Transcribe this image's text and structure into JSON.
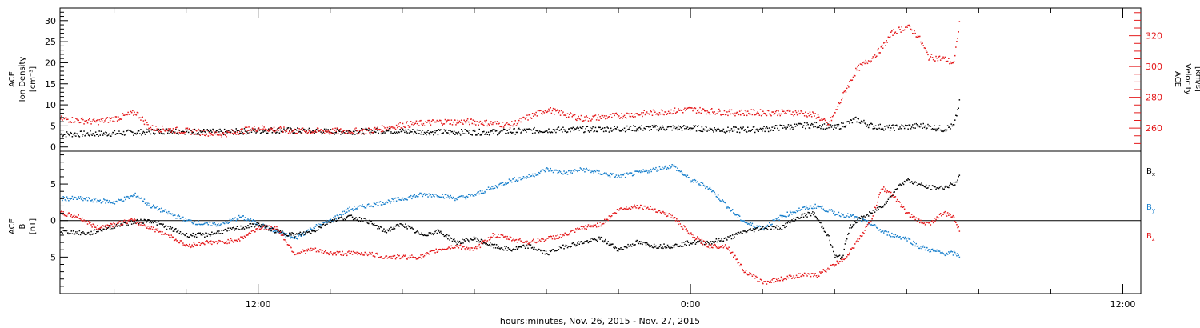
{
  "footer": {
    "xlabel": "hours:minutes, Nov. 26, 2015 - Nov. 27, 2015"
  },
  "x_ticks": [
    "12:00",
    "0:00",
    "12:00"
  ],
  "chart_data": [
    {
      "type": "scatter",
      "panel": "density-velocity",
      "ylabel_left": [
        "ACE",
        "Ion Density",
        "[cm⁻³]"
      ],
      "ylabel_right": [
        "ACE",
        "Velocity",
        "[km/s]"
      ],
      "x_unit": "hours from 00:00 UT Nov. 26, 2015",
      "xlim": [
        6.5,
        36.5
      ],
      "ylim_left": [
        -1,
        33
      ],
      "left_ticks": [
        0,
        5,
        10,
        15,
        20,
        25,
        30
      ],
      "ylim_right": [
        245,
        338
      ],
      "right_ticks": [
        260,
        280,
        300,
        320
      ],
      "series": [
        {
          "name": "Density",
          "color": "#000000",
          "axis": "left",
          "x": [
            6.5,
            8.0,
            9.5,
            11.0,
            12.5,
            14.0,
            15.5,
            17.0,
            18.5,
            20.0,
            21.5,
            23.0,
            24.0,
            25.0,
            26.0,
            27.0,
            27.5,
            28.0,
            28.3,
            28.6,
            29.0,
            29.5,
            30.0,
            30.5,
            31.0,
            31.3,
            31.45
          ],
          "y": [
            3.0,
            3.2,
            3.8,
            3.5,
            4.0,
            3.6,
            3.8,
            3.5,
            3.5,
            4.0,
            4.2,
            4.5,
            4.5,
            4.0,
            4.2,
            5.0,
            5.2,
            4.5,
            5.5,
            6.5,
            5.0,
            4.5,
            4.8,
            5.0,
            4.2,
            5.0,
            10.5
          ]
        },
        {
          "name": "Velocity",
          "color": "#e41a1c",
          "axis": "right",
          "x": [
            6.5,
            7.5,
            8.0,
            8.6,
            9.0,
            10.0,
            11.0,
            12.0,
            13.0,
            14.0,
            15.0,
            16.0,
            17.0,
            18.0,
            19.0,
            20.0,
            21.0,
            22.0,
            23.0,
            24.0,
            25.0,
            26.0,
            27.0,
            27.5,
            27.8,
            28.0,
            28.3,
            28.6,
            29.0,
            29.3,
            29.6,
            29.9,
            30.0,
            30.3,
            30.6,
            31.0,
            31.3,
            31.45
          ],
          "y": [
            266,
            264,
            266,
            270,
            260,
            258,
            256,
            260,
            258,
            258,
            258,
            262,
            264,
            264,
            262,
            272,
            266,
            268,
            270,
            272,
            270,
            270,
            270,
            268,
            262,
            270,
            285,
            298,
            305,
            312,
            322,
            325,
            326,
            320,
            306,
            305,
            302,
            328
          ]
        }
      ],
      "hlines": []
    },
    {
      "type": "scatter",
      "panel": "magnetic-field",
      "ylabel_left": [
        "ACE",
        "B",
        "[nT]"
      ],
      "x_unit": "hours from 00:00 UT Nov. 26, 2015",
      "xlim": [
        6.5,
        36.5
      ],
      "ylim_left": [
        -10,
        9.5
      ],
      "left_ticks": [
        -5,
        0,
        5
      ],
      "hlines": [
        0
      ],
      "legend_position": "right",
      "series": [
        {
          "name": "B",
          "sub": "x",
          "color": "#000000",
          "x": [
            6.5,
            7.3,
            7.8,
            8.4,
            9.0,
            9.5,
            10.0,
            10.5,
            11.0,
            11.5,
            12.0,
            12.5,
            13.0,
            13.5,
            14.0,
            14.5,
            15.0,
            15.5,
            16.0,
            16.5,
            17.0,
            17.5,
            18.0,
            18.5,
            19.0,
            19.5,
            20.0,
            20.5,
            21.0,
            21.5,
            22.0,
            22.5,
            23.0,
            23.5,
            24.0,
            24.5,
            25.0,
            25.5,
            26.0,
            26.5,
            27.0,
            27.4,
            27.6,
            27.8,
            28.0,
            28.2,
            28.4,
            28.6,
            28.8,
            29.0,
            29.3,
            29.5,
            29.8,
            30.0,
            30.3,
            30.6,
            31.0,
            31.3,
            31.45
          ],
          "y": [
            -1.5,
            -1.8,
            -1.0,
            -0.3,
            0.0,
            -1.0,
            -2.0,
            -2.0,
            -1.5,
            -1.0,
            -0.5,
            -1.5,
            -2.0,
            -1.5,
            0.0,
            0.5,
            0.0,
            -1.5,
            -0.5,
            -2.0,
            -1.5,
            -3.0,
            -2.5,
            -3.5,
            -4.0,
            -3.5,
            -4.5,
            -3.5,
            -3.0,
            -2.5,
            -4.0,
            -3.0,
            -3.5,
            -3.5,
            -3.0,
            -3.0,
            -2.5,
            -1.5,
            -1.0,
            -1.0,
            0.5,
            1.0,
            -0.5,
            -2.0,
            -5.0,
            -5.0,
            -1.0,
            0.0,
            0.5,
            1.0,
            2.0,
            3.0,
            5.0,
            5.5,
            5.0,
            4.5,
            4.5,
            5.0,
            6.0
          ]
        },
        {
          "name": "B",
          "sub": "y",
          "color": "#1a80cc",
          "x": [
            6.5,
            7.0,
            8.0,
            8.6,
            9.0,
            9.5,
            10.0,
            10.5,
            11.0,
            11.5,
            12.0,
            12.5,
            13.0,
            13.5,
            14.0,
            14.5,
            15.0,
            15.5,
            16.0,
            16.5,
            17.0,
            17.5,
            18.0,
            18.5,
            19.0,
            19.5,
            20.0,
            20.5,
            21.0,
            21.5,
            22.0,
            22.5,
            23.0,
            23.5,
            24.0,
            24.5,
            25.0,
            25.3,
            25.6,
            26.0,
            26.5,
            27.0,
            27.5,
            28.0,
            28.5,
            29.0,
            29.3,
            29.6,
            30.0,
            30.3,
            30.6,
            31.0,
            31.3,
            31.45
          ],
          "y": [
            3.0,
            3.0,
            2.5,
            3.5,
            2.0,
            1.0,
            0.0,
            -0.5,
            -0.5,
            0.5,
            -0.5,
            -1.5,
            -2.5,
            -1.0,
            0.0,
            1.5,
            2.0,
            2.5,
            3.0,
            3.5,
            3.5,
            3.0,
            3.5,
            4.5,
            5.5,
            6.0,
            7.0,
            6.5,
            7.0,
            6.5,
            6.0,
            6.5,
            7.0,
            7.5,
            5.5,
            4.5,
            2.0,
            0.5,
            -0.5,
            -1.0,
            0.5,
            1.5,
            2.0,
            1.0,
            0.5,
            -0.5,
            -1.5,
            -2.0,
            -2.5,
            -3.5,
            -4.0,
            -4.5,
            -4.5,
            -4.8
          ]
        },
        {
          "name": "B",
          "sub": "z",
          "color": "#e41a1c",
          "x": [
            6.5,
            7.0,
            7.5,
            8.0,
            8.5,
            9.0,
            9.5,
            10.0,
            10.5,
            11.0,
            11.5,
            12.0,
            12.5,
            13.0,
            13.5,
            14.0,
            14.5,
            15.0,
            15.5,
            16.0,
            16.5,
            17.0,
            17.5,
            18.0,
            18.5,
            19.0,
            19.5,
            20.0,
            20.5,
            21.0,
            21.5,
            22.0,
            22.5,
            23.0,
            23.5,
            24.0,
            24.5,
            25.0,
            25.5,
            26.0,
            26.5,
            27.0,
            27.5,
            28.0,
            28.3,
            28.6,
            29.0,
            29.3,
            29.6,
            30.0,
            30.3,
            30.6,
            31.0,
            31.3,
            31.45
          ],
          "y": [
            1.0,
            0.5,
            -1.0,
            -0.5,
            0.0,
            -1.0,
            -2.0,
            -3.5,
            -3.0,
            -3.0,
            -2.5,
            -1.0,
            -1.0,
            -4.5,
            -4.0,
            -4.5,
            -4.5,
            -4.5,
            -5.0,
            -5.0,
            -5.0,
            -4.0,
            -3.5,
            -4.0,
            -2.0,
            -2.5,
            -3.0,
            -2.5,
            -2.0,
            -1.0,
            -0.5,
            1.5,
            2.0,
            1.5,
            0.5,
            -2.0,
            -3.5,
            -3.5,
            -7.0,
            -8.5,
            -8.0,
            -7.5,
            -7.5,
            -6.0,
            -5.0,
            -3.0,
            0.0,
            4.5,
            3.5,
            1.0,
            0.0,
            -0.5,
            1.0,
            0.5,
            -1.5
          ]
        }
      ]
    }
  ]
}
